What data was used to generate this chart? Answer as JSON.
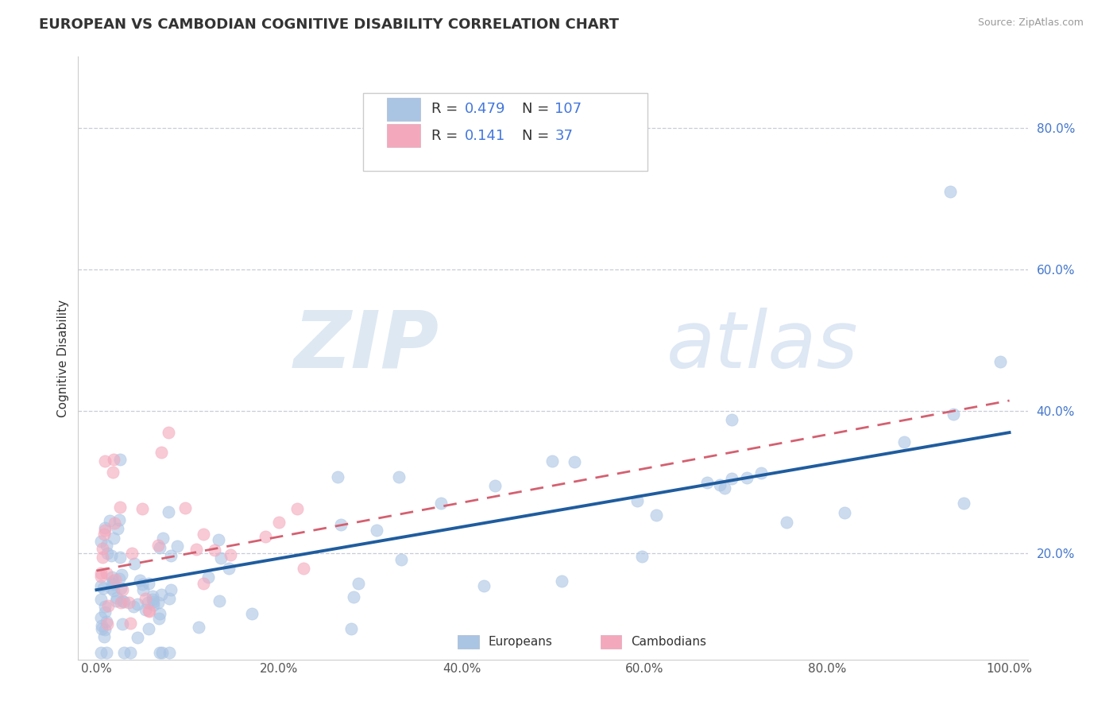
{
  "title": "EUROPEAN VS CAMBODIAN COGNITIVE DISABILITY CORRELATION CHART",
  "source": "Source: ZipAtlas.com",
  "xlabel": "",
  "ylabel": "Cognitive Disability",
  "xlim": [
    -0.02,
    1.02
  ],
  "ylim": [
    0.05,
    0.9
  ],
  "xtick_positions": [
    0.0,
    0.2,
    0.4,
    0.6,
    0.8,
    1.0
  ],
  "xtick_labels": [
    "0.0%",
    "20.0%",
    "40.0%",
    "60.0%",
    "80.0%",
    "100.0%"
  ],
  "ytick_positions": [
    0.2,
    0.4,
    0.6,
    0.8
  ],
  "ytick_labels": [
    "20.0%",
    "40.0%",
    "60.0%",
    "80.0%"
  ],
  "european_color": "#aac4e4",
  "cambodian_color": "#f4a8bc",
  "european_line_color": "#1f5c9e",
  "cambodian_line_color": "#d46070",
  "R_european": 0.479,
  "N_european": 107,
  "R_cambodian": 0.141,
  "N_cambodian": 37,
  "background_color": "#ffffff",
  "grid_color": "#c8ccd8",
  "watermark_zip": "ZIP",
  "watermark_atlas": "atlas",
  "title_fontsize": 13,
  "axis_label_fontsize": 11,
  "tick_fontsize": 11,
  "legend_fontsize": 13,
  "eu_line_start_y": 0.148,
  "eu_line_end_y": 0.37,
  "cam_line_start_y": 0.175,
  "cam_line_end_y": 0.415
}
